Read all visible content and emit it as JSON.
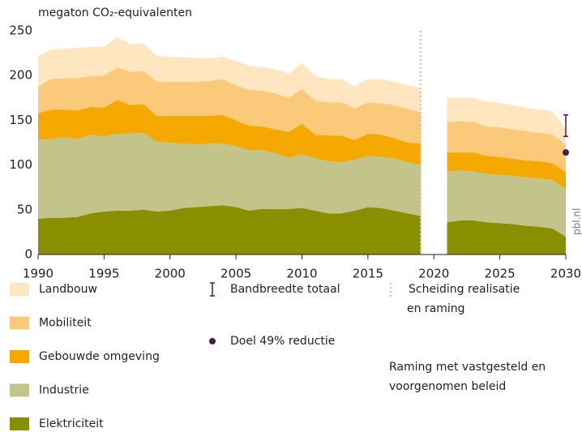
{
  "chart_data": {
    "type": "stacked-area",
    "ylabel": "megaton CO₂-equivalenten",
    "x": [
      1990,
      1991,
      1992,
      1993,
      1994,
      1995,
      1996,
      1997,
      1998,
      1999,
      2000,
      2001,
      2002,
      2003,
      2004,
      2005,
      2006,
      2007,
      2008,
      2009,
      2010,
      2011,
      2012,
      2013,
      2014,
      2015,
      2016,
      2017,
      2018,
      2019,
      2020,
      2021,
      2022,
      2023,
      2024,
      2025,
      2026,
      2027,
      2028,
      2029,
      2030
    ],
    "series": [
      {
        "name": "Elektriciteit",
        "color": "#8a8f00",
        "values": [
          40,
          41,
          41,
          42,
          46,
          48,
          49,
          49,
          50,
          48,
          49,
          52,
          53,
          54,
          55,
          53,
          49,
          51,
          51,
          51,
          52,
          49,
          46,
          46,
          49,
          53,
          52,
          49,
          46,
          43,
          null,
          36,
          38,
          38,
          36,
          35,
          34,
          32,
          31,
          29,
          20
        ]
      },
      {
        "name": "Industrie",
        "color": "#c2c48a",
        "values": [
          88,
          88,
          90,
          87,
          88,
          84,
          86,
          86,
          86,
          78,
          76,
          72,
          70,
          70,
          69,
          68,
          67,
          66,
          62,
          57,
          60,
          59,
          58,
          57,
          57,
          57,
          57,
          58,
          57,
          57,
          null,
          57,
          56,
          55,
          54,
          54,
          54,
          54,
          54,
          54,
          53
        ]
      },
      {
        "name": "Gebouwde omgeving",
        "color": "#f5a800",
        "values": [
          30,
          33,
          31,
          32,
          31,
          32,
          38,
          32,
          32,
          29,
          30,
          31,
          32,
          31,
          32,
          29,
          28,
          26,
          27,
          29,
          34,
          26,
          29,
          30,
          22,
          25,
          25,
          23,
          22,
          24,
          null,
          21,
          20,
          21,
          20,
          20,
          19,
          19,
          19,
          19,
          19
        ]
      },
      {
        "name": "Mobiliteit",
        "color": "#fbc97a",
        "values": [
          30,
          34,
          35,
          36,
          35,
          36,
          36,
          37,
          37,
          38,
          38,
          38,
          38,
          39,
          40,
          39,
          40,
          40,
          40,
          38,
          39,
          38,
          37,
          37,
          35,
          35,
          35,
          37,
          38,
          35,
          null,
          34,
          35,
          34,
          33,
          33,
          33,
          33,
          32,
          32,
          31
        ]
      },
      {
        "name": "Landbouw",
        "color": "#fde6c0",
        "values": [
          34,
          33,
          33,
          34,
          32,
          32,
          34,
          31,
          31,
          29,
          28,
          27,
          27,
          25,
          25,
          27,
          27,
          26,
          27,
          27,
          29,
          28,
          26,
          26,
          25,
          26,
          27,
          26,
          26,
          27,
          null,
          27,
          26,
          27,
          28,
          27,
          27,
          26,
          26,
          26,
          17
        ]
      }
    ],
    "xlim": [
      1990,
      2030
    ],
    "xticks": [
      1990,
      1995,
      2000,
      2005,
      2010,
      2015,
      2020,
      2025,
      2030
    ],
    "ylim": [
      0,
      250
    ],
    "yticks": [
      0,
      50,
      100,
      150,
      200,
      250
    ],
    "range": {
      "name": "Bandbreedte totaal",
      "color": "#4a1a4f",
      "x": 2030,
      "low": 132,
      "high": 156
    },
    "target": {
      "name": "Doel 49% reductie",
      "color": "#4a1a4f",
      "x": 2030,
      "value": 114
    },
    "divider": {
      "name": [
        "Scheiding realisatie",
        "en raming"
      ],
      "x": 2019,
      "color": "#c8c8c8"
    },
    "note": [
      "Raming met vastgesteld en",
      "voorgenomen beleid"
    ],
    "source": "pbl.nl"
  }
}
